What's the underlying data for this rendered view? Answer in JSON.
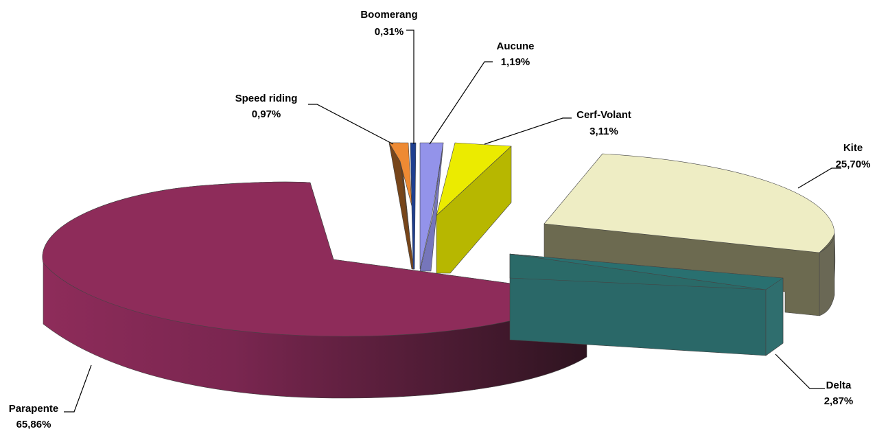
{
  "chart_data": {
    "type": "pie",
    "title": "",
    "categories": [
      "Kite",
      "Delta",
      "Parapente",
      "Speed riding",
      "Boomerang",
      "Aucune",
      "Cerf-Volant"
    ],
    "values": [
      25.7,
      2.87,
      65.86,
      0.97,
      0.31,
      1.19,
      3.11
    ],
    "series": [
      {
        "values": [
          25.7,
          2.87,
          65.86,
          0.97,
          0.31,
          1.19,
          3.11
        ]
      }
    ],
    "labels": [
      {
        "name": "Kite",
        "value": "25,70%"
      },
      {
        "name": "Delta",
        "value": "2,87%"
      },
      {
        "name": "Parapente",
        "value": "65,86%"
      },
      {
        "name": "Speed riding",
        "value": "0,97%"
      },
      {
        "name": "Boomerang",
        "value": "0,31%"
      },
      {
        "name": "Aucune",
        "value": "1,19%"
      },
      {
        "name": "Cerf-Volant",
        "value": "3,11%"
      }
    ],
    "colors": {
      "Kite": "#EEEDC4",
      "Delta": "#5FF2F0",
      "Parapente": "#8E2C5A",
      "Speed riding": "#EE8A33",
      "Boomerang": "#1F3F8F",
      "Aucune": "#9393EA",
      "Cerf-Volant": "#EBEB00"
    },
    "style": "3d-exploded",
    "legend": "none"
  }
}
